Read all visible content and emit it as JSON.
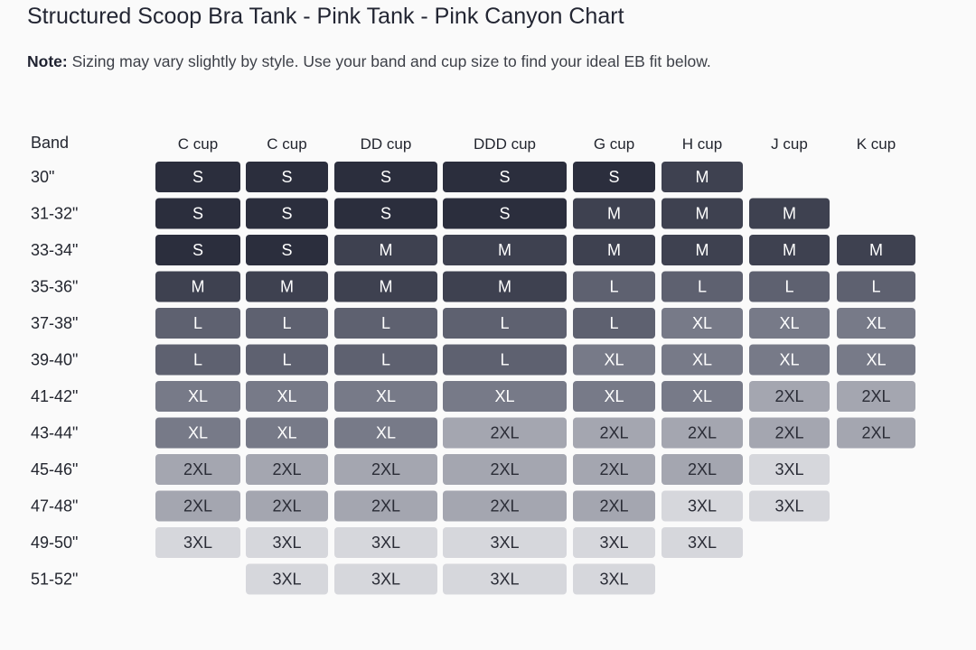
{
  "title": "Structured Scoop Bra Tank - Pink Tank - Pink Canyon Chart",
  "note": {
    "label": "Note:",
    "text": "Sizing may vary slightly by style. Use your band and cup size to find your ideal EB fit below."
  },
  "chart_data": {
    "type": "table",
    "row_header": "Band",
    "columns": [
      "C cup",
      "C cup",
      "DD cup",
      "DDD cup",
      "G cup",
      "H cup",
      "J cup",
      "K cup"
    ],
    "rows": [
      "30\"",
      "31-32\"",
      "33-34\"",
      "35-36\"",
      "37-38\"",
      "39-40\"",
      "41-42\"",
      "43-44\"",
      "45-46\"",
      "47-48\"",
      "49-50\"",
      "51-52\""
    ],
    "cells": [
      [
        "S",
        "S",
        "S",
        "S",
        "S",
        "M",
        null,
        null
      ],
      [
        "S",
        "S",
        "S",
        "S",
        "M",
        "M",
        "M",
        null
      ],
      [
        "S",
        "S",
        "M",
        "M",
        "M",
        "M",
        "M",
        "M"
      ],
      [
        "M",
        "M",
        "M",
        "M",
        "L",
        "L",
        "L",
        "L"
      ],
      [
        "L",
        "L",
        "L",
        "L",
        "L",
        "XL",
        "XL",
        "XL"
      ],
      [
        "L",
        "L",
        "L",
        "L",
        "XL",
        "XL",
        "XL",
        "XL"
      ],
      [
        "XL",
        "XL",
        "XL",
        "XL",
        "XL",
        "XL",
        "2XL",
        "2XL"
      ],
      [
        "XL",
        "XL",
        "XL",
        "2XL",
        "2XL",
        "2XL",
        "2XL",
        "2XL"
      ],
      [
        "2XL",
        "2XL",
        "2XL",
        "2XL",
        "2XL",
        "2XL",
        "3XL",
        null
      ],
      [
        "2XL",
        "2XL",
        "2XL",
        "2XL",
        "2XL",
        "3XL",
        "3XL",
        null
      ],
      [
        "3XL",
        "3XL",
        "3XL",
        "3XL",
        "3XL",
        "3XL",
        null,
        null
      ],
      [
        null,
        "3XL",
        "3XL",
        "3XL",
        "3XL",
        null,
        null,
        null
      ]
    ]
  },
  "size_colors": {
    "S": "#2b2e3d",
    "M": "#3e4150",
    "L": "#5e6170",
    "XL": "#777a88",
    "2XL": "#a4a6b0",
    "3XL": "#d6d7dc"
  },
  "size_text_colors": {
    "S": "#ffffff",
    "M": "#ffffff",
    "L": "#ffffff",
    "XL": "#ffffff",
    "2XL": "#2a2c36",
    "3XL": "#2a2c36"
  }
}
